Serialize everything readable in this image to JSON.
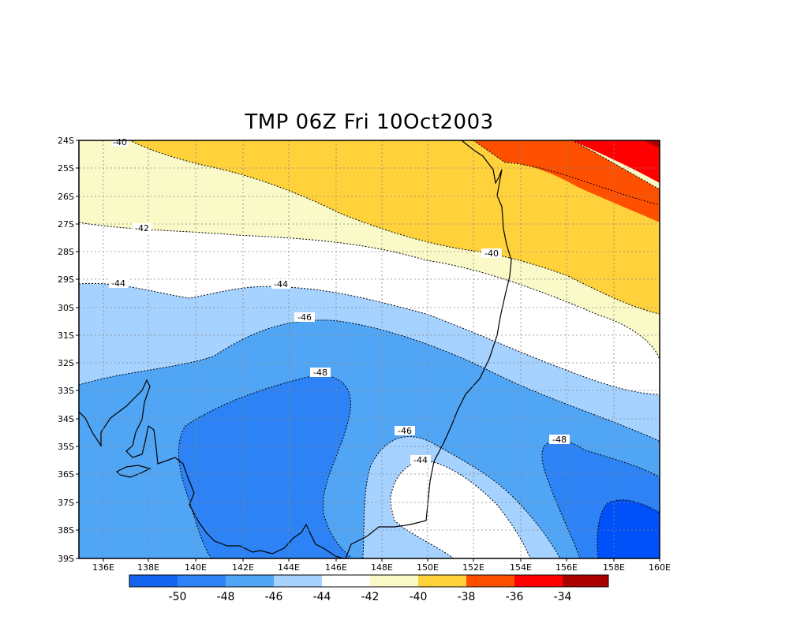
{
  "title": "TMP 06Z Fri 10Oct2003",
  "map": {
    "lat_ticks": [
      "24S",
      "25S",
      "26S",
      "27S",
      "28S",
      "29S",
      "30S",
      "31S",
      "32S",
      "33S",
      "34S",
      "35S",
      "36S",
      "37S",
      "38S",
      "39S"
    ],
    "lon_ticks": [
      "136E",
      "138E",
      "140E",
      "142E",
      "144E",
      "146E",
      "148E",
      "150E",
      "152E",
      "154E",
      "156E",
      "158E",
      "160E"
    ],
    "contour_labels": [
      "-40",
      "-42",
      "-44",
      "-44",
      "-46",
      "-48",
      "-46",
      "-44",
      "-48",
      "-40"
    ]
  },
  "colorbar": {
    "levels": [
      "-50",
      "-48",
      "-46",
      "-44",
      "-42",
      "-40",
      "-38",
      "-36",
      "-34"
    ],
    "colors": [
      "#1464f0",
      "#2d82f5",
      "#50a5f5",
      "#a5d2ff",
      "#ffffff",
      "#fafac8",
      "#ffd23c",
      "#ff5000",
      "#ff0000",
      "#aa0000"
    ]
  },
  "palette": {
    "shade_lt_yellow": "#fafac8",
    "shade_yellow": "#ffd23c",
    "shade_orange": "#ff5000",
    "shade_red": "#ff0000",
    "shade_dark_red": "#aa0000",
    "shade_white": "#ffffff",
    "shade_lt_blue": "#a5d2ff",
    "shade_mid_blue": "#50a5f5",
    "shade_blue": "#2d82f5",
    "shade_dark_blue": "#1464f0",
    "shade_deep_blue": "#0050fa"
  }
}
